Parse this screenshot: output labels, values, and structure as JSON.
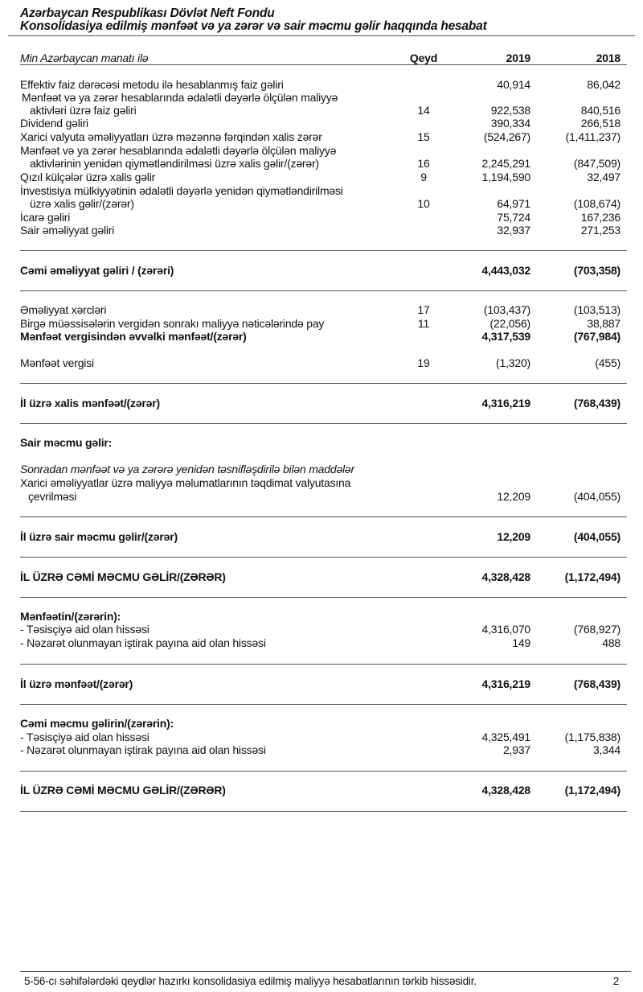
{
  "header": {
    "title_line1": "Azərbaycan Respublikası Dövlət Neft Fondu",
    "title_line2": "Konsolidasiya edilmiş mənfəət və ya zərər və sair məcmu gəlir haqqında hesabat"
  },
  "columns": {
    "unit": "Min Azərbaycan manatı ilə",
    "note": "Qeyd",
    "y2019": "2019",
    "y2018": "2018"
  },
  "rows": [
    {
      "label": "Effektiv faiz dərəcəsi metodu ilə hesablanmış faiz gəliri",
      "note": "",
      "v2019": "40,914",
      "v2018": "86,042"
    },
    {
      "label": "Mənfəət və ya zərər hesablarında ədalətli dəyərlə ölçülən maliyyə",
      "note": "",
      "v2019": "",
      "v2018": ""
    },
    {
      "label": "aktivləri üzrə faiz gəliri",
      "note": "14",
      "v2019": "922,538",
      "v2018": "840,516"
    },
    {
      "label": "Dividend gəliri",
      "note": "",
      "v2019": "390,334",
      "v2018": "266,518"
    },
    {
      "label": "Xarici valyuta əməliyyatları üzrə məzənnə fərqindən xalis zərər",
      "note": "15",
      "v2019": "(524,267)",
      "v2018": "(1,411,237)"
    },
    {
      "label": "Mənfəət və ya zərər hesablarında ədalətli dəyərlə ölçülən maliyyə",
      "note": "",
      "v2019": "",
      "v2018": ""
    },
    {
      "label": "aktivlərinin yenidən qiymətləndirilməsi üzrə xalis gəlir/(zərər)",
      "note": "16",
      "v2019": "2,245,291",
      "v2018": "(847,509)"
    },
    {
      "label": "Qızıl külçələr üzrə xalis gəlir",
      "note": "9",
      "v2019": "1,194,590",
      "v2018": "32,497"
    },
    {
      "label": "İnvestisiya mülkiyyətinin ədalətli dəyərlə yenidən qiymətləndirilməsi",
      "note": "",
      "v2019": "",
      "v2018": ""
    },
    {
      "label": "üzrə xalis gəlir/(zərər)",
      "note": "10",
      "v2019": "64,971",
      "v2018": "(108,674)"
    },
    {
      "label": "İcarə gəliri",
      "note": "",
      "v2019": "75,724",
      "v2018": "167,236"
    },
    {
      "label": "Sair əməliyyat gəliri",
      "note": "",
      "v2019": "32,937",
      "v2018": "271,253"
    },
    {
      "label": "Cəmi əməliyyat gəliri / (zərəri)",
      "note": "",
      "v2019": "4,443,032",
      "v2018": "(703,358)"
    },
    {
      "label": "Əməliyyat xərcləri",
      "note": "17",
      "v2019": "(103,437)",
      "v2018": "(103,513)"
    },
    {
      "label": "Birgə müəssisələrin vergidən sonrakı maliyyə nəticələrində pay",
      "note": "11",
      "v2019": "(22,056)",
      "v2018": "38,887"
    },
    {
      "label": "Mənfəət vergisindən əvvəlki mənfəət/(zərər)",
      "note": "",
      "v2019": "4,317,539",
      "v2018": "(767,984)"
    },
    {
      "label": "Mənfəət vergisi",
      "note": "19",
      "v2019": "(1,320)",
      "v2018": "(455)"
    },
    {
      "label": "İl üzrə xalis mənfəət/(zərər)",
      "note": "",
      "v2019": "4,316,219",
      "v2018": "(768,439)"
    },
    {
      "label": "Sair məcmu gəlir:",
      "note": "",
      "v2019": "",
      "v2018": ""
    },
    {
      "label": "Sonradan mənfəət və ya zərərə yenidən təsnifləşdirilə bilən maddələr",
      "note": "",
      "v2019": "",
      "v2018": ""
    },
    {
      "label": "Xarici əməliyyatlar üzrə maliyyə məlumatlarının təqdimat valyutasına",
      "note": "",
      "v2019": "",
      "v2018": ""
    },
    {
      "label": "çevrilməsi",
      "note": "",
      "v2019": "12,209",
      "v2018": "(404,055)"
    },
    {
      "label": "İl üzrə sair məcmu gəlir/(zərər)",
      "note": "",
      "v2019": "12,209",
      "v2018": "(404,055)"
    },
    {
      "label": "İL ÜZRƏ CƏMİ MƏCMU GƏLİR/(ZƏRƏR)",
      "note": "",
      "v2019": "4,328,428",
      "v2018": "(1,172,494)"
    },
    {
      "label": "Mənfəətin/(zərərin):",
      "note": "",
      "v2019": "",
      "v2018": ""
    },
    {
      "label": "- Təsisçiyə aid olan hissəsi",
      "note": "",
      "v2019": "4,316,070",
      "v2018": "(768,927)"
    },
    {
      "label": "- Nəzarət olunmayan iştirak payına aid olan hissəsi",
      "note": "",
      "v2019": "149",
      "v2018": "488"
    },
    {
      "label": "İl üzrə mənfəət/(zərər)",
      "note": "",
      "v2019": "4,316,219",
      "v2018": "(768,439)"
    },
    {
      "label": "Cəmi məcmu gəlirin/(zərərin):",
      "note": "",
      "v2019": "",
      "v2018": ""
    },
    {
      "label": "- Təsisçiyə aid olan hissəsi",
      "note": "",
      "v2019": "4,325,491",
      "v2018": "(1,175,838)"
    },
    {
      "label": "- Nəzarət olunmayan iştirak payına aid olan hissəsi",
      "note": "",
      "v2019": "2,937",
      "v2018": "3,344"
    },
    {
      "label": "İL ÜZRƏ CƏMİ MƏCMU GƏLİR/(ZƏRƏR)",
      "note": "",
      "v2019": "4,328,428",
      "v2018": "(1,172,494)"
    }
  ],
  "footer": {
    "text": "5-56-cı səhifələrdəki qeydlər hazırkı konsolidasiya edilmiş maliyyə hesabatlarının tərkib hissəsidir.",
    "page_number": "2"
  }
}
